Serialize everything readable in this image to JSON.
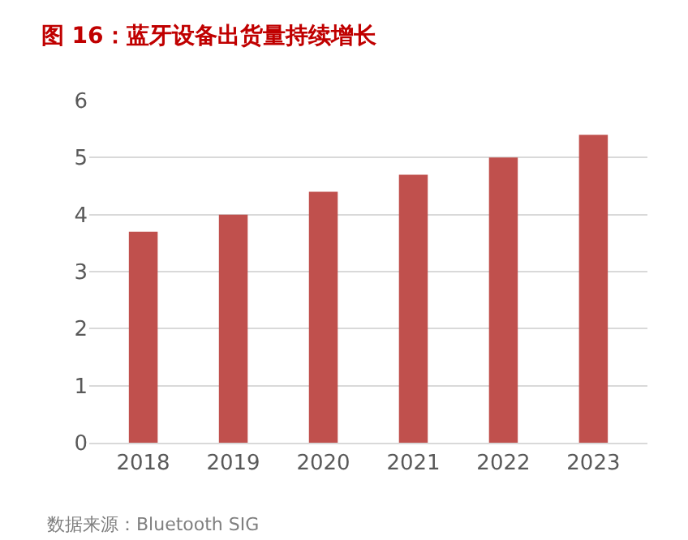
{
  "chart_data": {
    "type": "bar",
    "title": "图 16：蓝牙设备出货量持续增长",
    "categories": [
      "2018",
      "2019",
      "2020",
      "2021",
      "2022",
      "2023"
    ],
    "values": [
      3.7,
      4.0,
      4.4,
      4.7,
      5.0,
      5.4
    ],
    "color": "#c0504d",
    "ylim": [
      0,
      6
    ],
    "yticks": [
      0,
      1,
      2,
      3,
      4,
      5,
      6
    ],
    "grid": "y",
    "annotations": [
      "数据来源：Bluetooth SIG"
    ]
  }
}
